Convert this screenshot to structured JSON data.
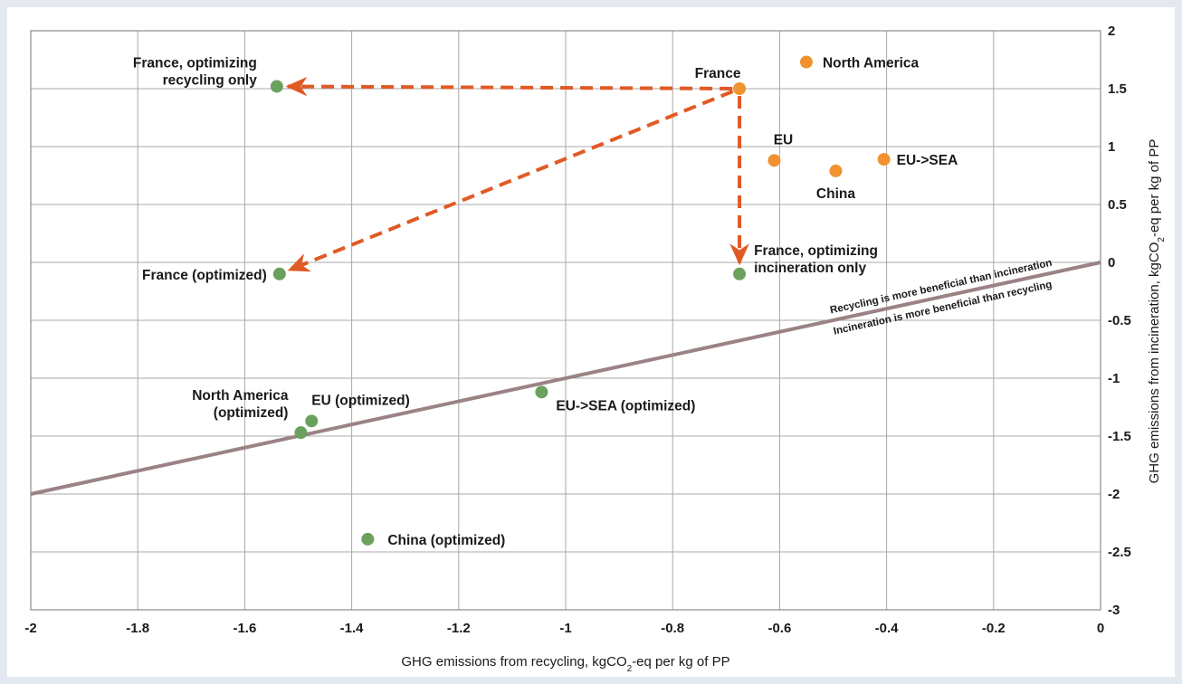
{
  "chart_data": {
    "type": "scatter",
    "xlabel": "GHG emissions from recycling, kgCO₂-eq per kg of PP",
    "ylabel": "GHG emissions from incineration, kgCO₂-eq per kg of PP",
    "xlim": [
      -2,
      0
    ],
    "ylim": [
      -3,
      2
    ],
    "x_ticks": [
      "-2",
      "-1.8",
      "-1.6",
      "-1.4",
      "-1.2",
      "-1",
      "-0.8",
      "-0.6",
      "-0.4",
      "-0.2",
      "0"
    ],
    "y_ticks": [
      "2",
      "1.5",
      "1",
      "0.5",
      "0",
      "-0.5",
      "-1",
      "-1.5",
      "-2",
      "-2.5",
      "-3"
    ],
    "y_axis_position": "right",
    "grid": true,
    "colors": {
      "current": "#f0922f",
      "optimized": "#6aa25d",
      "arrow": "#e05a25",
      "line": "#9a8385",
      "grid": "#a8a8a8"
    },
    "series": [
      {
        "group": "current",
        "points": [
          {
            "x": -0.675,
            "y": 1.5,
            "label": "France"
          },
          {
            "x": -0.55,
            "y": 1.73,
            "label": "North America"
          },
          {
            "x": -0.61,
            "y": 0.88,
            "label": "EU"
          },
          {
            "x": -0.495,
            "y": 0.79,
            "label": "China"
          },
          {
            "x": -0.405,
            "y": 0.89,
            "label": "EU->SEA"
          }
        ]
      },
      {
        "group": "optimized",
        "points": [
          {
            "x": -1.54,
            "y": 1.52,
            "label": "France, optimizing\nrecycling only"
          },
          {
            "x": -0.675,
            "y": -0.1,
            "label": "France, optimizing\nincineration only"
          },
          {
            "x": -1.535,
            "y": -0.1,
            "label": "France (optimized)"
          },
          {
            "x": -1.475,
            "y": -1.37,
            "label": "EU (optimized)"
          },
          {
            "x": -1.495,
            "y": -1.47,
            "label": "North America\n(optimized)"
          },
          {
            "x": -1.045,
            "y": -1.12,
            "label": "EU->SEA (optimized)"
          },
          {
            "x": -1.37,
            "y": -2.39,
            "label": "China (optimized)"
          }
        ]
      }
    ],
    "arrows": [
      {
        "from": [
          -0.675,
          1.5
        ],
        "to": [
          -1.54,
          1.52
        ]
      },
      {
        "from": [
          -0.675,
          1.5
        ],
        "to": [
          -0.675,
          -0.1
        ]
      },
      {
        "from": [
          -0.675,
          1.5
        ],
        "to": [
          -1.535,
          -0.1
        ]
      }
    ],
    "reference_line": {
      "from": [
        -2,
        -2
      ],
      "to": [
        0,
        0
      ]
    },
    "annotations": {
      "above": "Recycling is more beneficial than incineration",
      "below": "Incineration is more beneficial than recycling"
    }
  }
}
